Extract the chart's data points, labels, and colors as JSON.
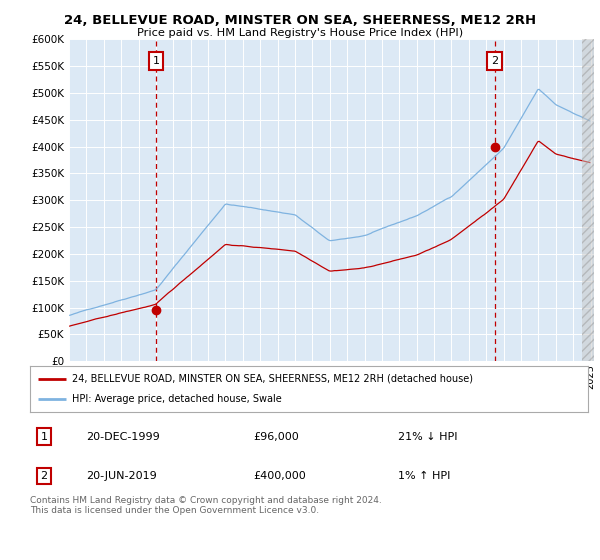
{
  "title": "24, BELLEVUE ROAD, MINSTER ON SEA, SHEERNESS, ME12 2RH",
  "subtitle": "Price paid vs. HM Land Registry's House Price Index (HPI)",
  "background_color": "#ffffff",
  "plot_bg_color": "#dce9f5",
  "hpi_color": "#7fb3e0",
  "price_color": "#c00000",
  "dashed_color": "#c00000",
  "ylim": [
    0,
    600000
  ],
  "yticks": [
    0,
    50000,
    100000,
    150000,
    200000,
    250000,
    300000,
    350000,
    400000,
    450000,
    500000,
    550000,
    600000
  ],
  "sale1_year": 2000.0,
  "sale1_price": 96000,
  "sale2_year": 2019.5,
  "sale2_price": 400000,
  "legend_line1": "24, BELLEVUE ROAD, MINSTER ON SEA, SHEERNESS, ME12 2RH (detached house)",
  "legend_line2": "HPI: Average price, detached house, Swale",
  "annotation1_label": "1",
  "annotation1_date": "20-DEC-1999",
  "annotation1_price": "£96,000",
  "annotation1_hpi": "21% ↓ HPI",
  "annotation2_label": "2",
  "annotation2_date": "20-JUN-2019",
  "annotation2_price": "£400,000",
  "annotation2_hpi": "1% ↑ HPI",
  "footer": "Contains HM Land Registry data © Crown copyright and database right 2024.\nThis data is licensed under the Open Government Licence v3.0.",
  "xlim_left": 1995.0,
  "xlim_right": 2025.2
}
